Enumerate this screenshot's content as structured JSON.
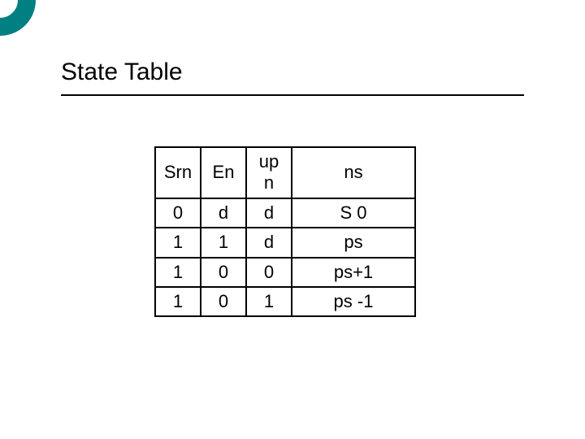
{
  "decor": {
    "ring_border_color": "#008080",
    "ring_border_width": 22
  },
  "title": "State Table",
  "table": {
    "columns": [
      "Srn",
      "En",
      "up\nn",
      "ns"
    ],
    "col_widths_class": [
      "col-narrow",
      "col-narrow",
      "col-narrow",
      "col-wide"
    ],
    "rows": [
      [
        "0",
        "d",
        "d",
        "S 0"
      ],
      [
        "1",
        "1",
        "d",
        "ps"
      ],
      [
        "1",
        "0",
        "0",
        "ps+1"
      ],
      [
        "1",
        "0",
        "1",
        "ps -1"
      ]
    ]
  }
}
